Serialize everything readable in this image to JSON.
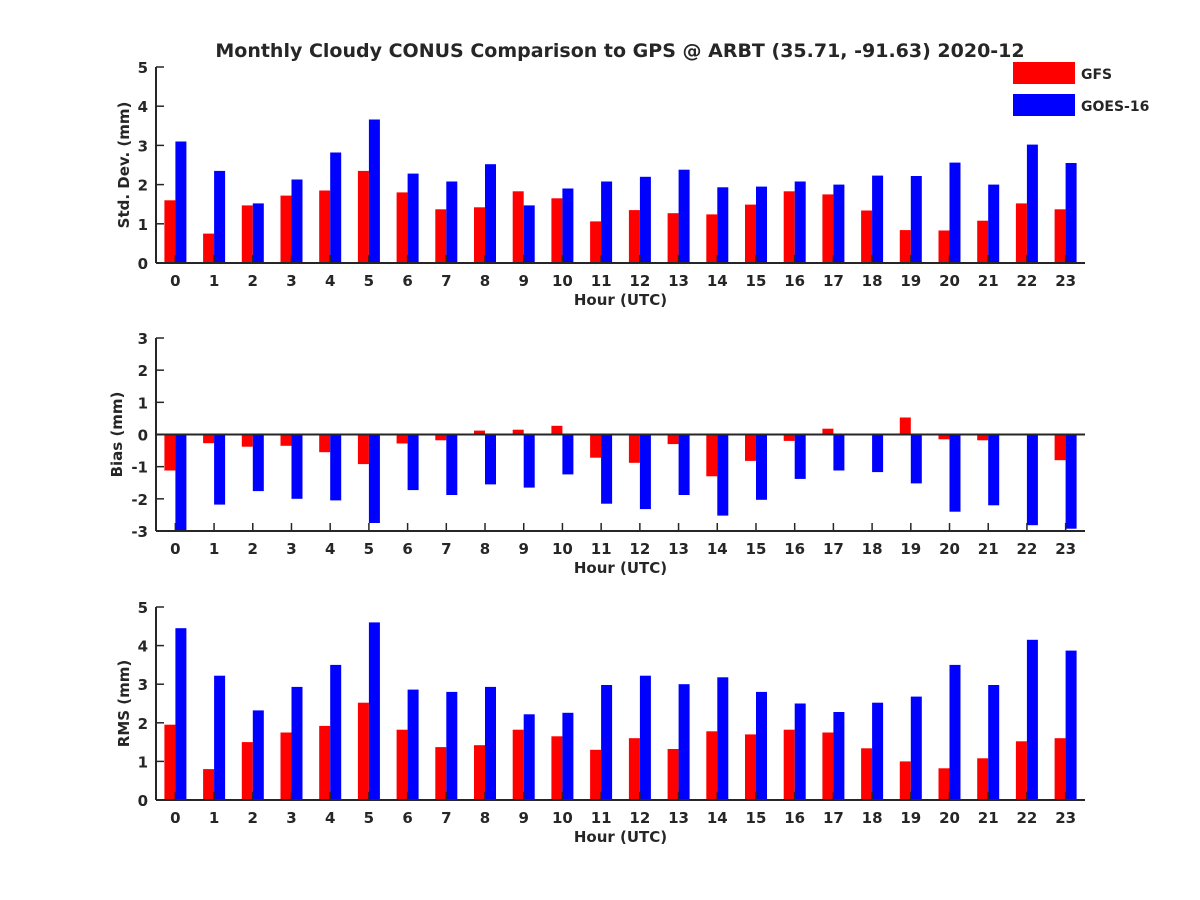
{
  "title": "Monthly Cloudy CONUS Comparison to GPS @ ARBT (35.71, -91.63) 2020-12",
  "legend": {
    "placement": "top-right",
    "entries": [
      {
        "label": "GFS",
        "color": "#ff0000"
      },
      {
        "label": "GOES-16",
        "color": "#0000ff"
      }
    ]
  },
  "chart_data": [
    {
      "type": "bar",
      "title": "Monthly Cloudy CONUS Comparison to GPS @ ARBT (35.71, -91.63) 2020-12",
      "xlabel": "Hour (UTC)",
      "ylabel": "Std. Dev. (mm)",
      "ylim": [
        0,
        5
      ],
      "yticks": [
        0,
        1,
        2,
        3,
        4,
        5
      ],
      "categories": [
        "0",
        "1",
        "2",
        "3",
        "4",
        "5",
        "6",
        "7",
        "8",
        "9",
        "10",
        "11",
        "12",
        "13",
        "14",
        "15",
        "16",
        "17",
        "18",
        "19",
        "20",
        "21",
        "22",
        "23"
      ],
      "series": [
        {
          "name": "GFS",
          "color": "#ff0000",
          "values": [
            1.6,
            0.75,
            1.47,
            1.72,
            1.85,
            2.35,
            1.8,
            1.37,
            1.42,
            1.83,
            1.65,
            1.06,
            1.35,
            1.27,
            1.24,
            1.49,
            1.83,
            1.75,
            1.34,
            0.84,
            0.83,
            1.08,
            1.52,
            1.37
          ]
        },
        {
          "name": "GOES-16",
          "color": "#0000ff",
          "values": [
            3.1,
            2.35,
            1.52,
            2.13,
            2.82,
            3.66,
            2.28,
            2.08,
            2.52,
            1.47,
            1.9,
            2.08,
            2.2,
            2.38,
            1.93,
            1.95,
            2.08,
            2.0,
            2.23,
            2.22,
            2.56,
            2.0,
            3.02,
            2.55
          ]
        }
      ],
      "grid": false
    },
    {
      "type": "bar",
      "xlabel": "Hour (UTC)",
      "ylabel": "Bias (mm)",
      "ylim": [
        -3,
        3
      ],
      "yticks": [
        -3,
        -2,
        -1,
        0,
        1,
        2,
        3
      ],
      "categories": [
        "0",
        "1",
        "2",
        "3",
        "4",
        "5",
        "6",
        "7",
        "8",
        "9",
        "10",
        "11",
        "12",
        "13",
        "14",
        "15",
        "16",
        "17",
        "18",
        "19",
        "20",
        "21",
        "22",
        "23"
      ],
      "series": [
        {
          "name": "GFS",
          "color": "#ff0000",
          "values": [
            -1.12,
            -0.27,
            -0.38,
            -0.35,
            -0.55,
            -0.92,
            -0.28,
            -0.18,
            0.12,
            0.15,
            0.27,
            -0.72,
            -0.88,
            -0.3,
            -1.3,
            -0.82,
            -0.2,
            0.18,
            0.02,
            0.53,
            -0.15,
            -0.18,
            0.0,
            -0.8
          ]
        },
        {
          "name": "GOES-16",
          "color": "#0000ff",
          "values": [
            -3.0,
            -2.18,
            -1.76,
            -2.0,
            -2.05,
            -2.75,
            -1.73,
            -1.88,
            -1.55,
            -1.65,
            -1.24,
            -2.15,
            -2.32,
            -1.88,
            -2.52,
            -2.03,
            -1.38,
            -1.12,
            -1.17,
            -1.52,
            -2.4,
            -2.2,
            -2.82,
            -2.93
          ]
        }
      ],
      "grid": false
    },
    {
      "type": "bar",
      "xlabel": "Hour (UTC)",
      "ylabel": "RMS (mm)",
      "ylim": [
        0,
        5
      ],
      "yticks": [
        0,
        1,
        2,
        3,
        4,
        5
      ],
      "categories": [
        "0",
        "1",
        "2",
        "3",
        "4",
        "5",
        "6",
        "7",
        "8",
        "9",
        "10",
        "11",
        "12",
        "13",
        "14",
        "15",
        "16",
        "17",
        "18",
        "19",
        "20",
        "21",
        "22",
        "23"
      ],
      "series": [
        {
          "name": "GFS",
          "color": "#ff0000",
          "values": [
            1.95,
            0.8,
            1.5,
            1.75,
            1.92,
            2.52,
            1.82,
            1.37,
            1.42,
            1.82,
            1.65,
            1.3,
            1.6,
            1.32,
            1.78,
            1.7,
            1.82,
            1.75,
            1.34,
            1.0,
            0.82,
            1.08,
            1.52,
            1.6
          ]
        },
        {
          "name": "GOES-16",
          "color": "#0000ff",
          "values": [
            4.45,
            3.22,
            2.32,
            2.93,
            3.5,
            4.6,
            2.86,
            2.8,
            2.93,
            2.22,
            2.26,
            2.98,
            3.22,
            3.0,
            3.18,
            2.8,
            2.5,
            2.28,
            2.52,
            2.68,
            3.5,
            2.98,
            4.15,
            3.87
          ]
        }
      ],
      "grid": false
    }
  ]
}
